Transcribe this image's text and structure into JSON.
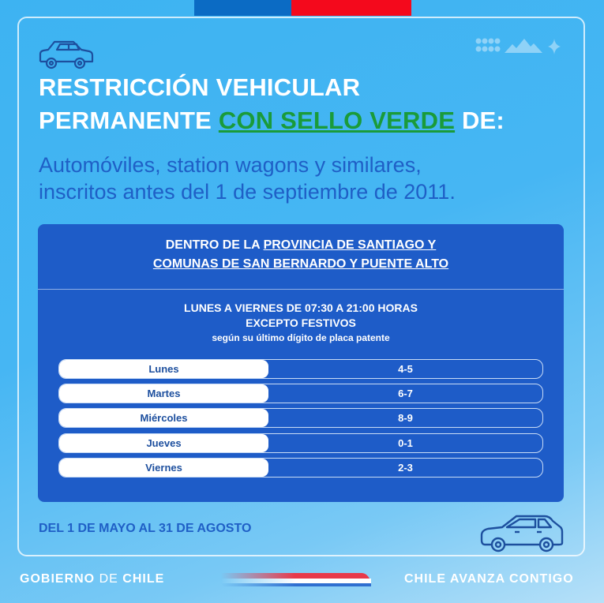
{
  "header": {
    "title_line1": "RESTRICCIÓN VEHICULAR",
    "title_line2_prefix": "PERMANENTE",
    "title_highlight": "CON SELLO VERDE",
    "title_line2_suffix": "DE:",
    "subtitle_line1": "Automóviles, station wagons y similares,",
    "subtitle_line2": "inscritos antes del 1 de septiembre de 2011."
  },
  "area": {
    "line1_prefix": "DENTRO DE LA",
    "line1_link": "PROVINCIA DE SANTIAGO Y",
    "line2": "COMUNAS DE SAN BERNARDO Y PUENTE ALTO"
  },
  "schedule": {
    "hours": "LUNES A VIERNES DE 07:30 A 21:00 HORAS",
    "exception": "EXCEPTO FESTIVOS",
    "note": "según su último dígito de placa patente"
  },
  "rows": [
    {
      "day": "Lunes",
      "digits": "4-5"
    },
    {
      "day": "Martes",
      "digits": "6-7"
    },
    {
      "day": "Miércoles",
      "digits": "8-9"
    },
    {
      "day": "Jueves",
      "digits": "0-1"
    },
    {
      "day": "Viernes",
      "digits": "2-3"
    }
  ],
  "period": "DEL 1 DE MAYO AL 31 DE AGOSTO",
  "footer": {
    "left_a": "GOBIERNO",
    "left_b": "DE",
    "left_c": "CHILE",
    "right": "CHILE AVANZA CONTIGO"
  },
  "colors": {
    "background": "#3db3f2",
    "panel": "#1e5cc8",
    "highlight": "#1a9b3a",
    "flag_blue": "#0b6bc4",
    "flag_red": "#f4091c"
  }
}
